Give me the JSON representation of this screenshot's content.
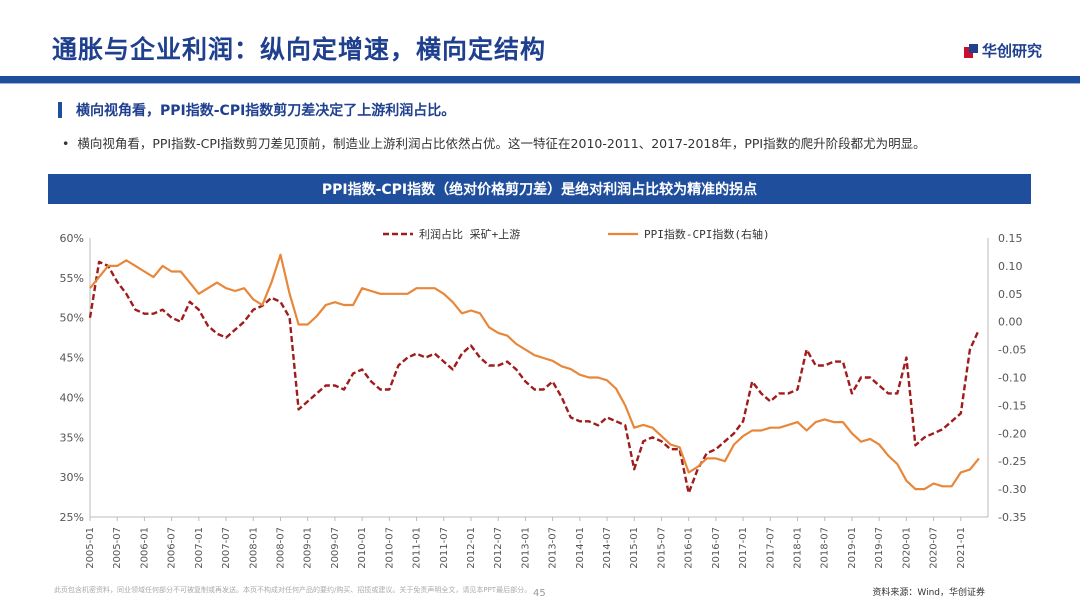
{
  "header": {
    "title": "通胀与企业利润：纵向定增速，横向定结构",
    "brand": "华创研究"
  },
  "headline": "横向视角看，PPI指数-CPI指数剪刀差决定了上游利润占比。",
  "bullet": "横向视角看，PPI指数-CPI指数剪刀差见顶前，制造业上游利润占比依然占优。这一特征在2010-2011、2017-2018年，PPI指数的爬升阶段都尤为明显。",
  "banner": "PPI指数-CPI指数（绝对价格剪刀差）是绝对利润占比较为精准的拐点",
  "footer": {
    "disclaimer": "此页包含机密资料，同业领域任何部分不可被复制或再发送。本页不构成对任何产品的要约/购买、招揽或建议。关于免责声明全文，请见本PPT最后部分。",
    "page": "45",
    "source": "资料来源：Wind，华创证券"
  },
  "colors": {
    "left_series": "#a01c1c",
    "right_series": "#e8873a",
    "axis": "#555555",
    "title_blue": "#1f3f8f",
    "banner_blue": "#1f4e9c"
  },
  "chart_data": {
    "type": "line",
    "grid": false,
    "legend_position": "top",
    "x_ticks": [
      "2005-01",
      "2005-07",
      "2006-01",
      "2006-07",
      "2007-01",
      "2007-07",
      "2008-01",
      "2008-07",
      "2009-01",
      "2009-07",
      "2010-01",
      "2010-07",
      "2011-01",
      "2011-07",
      "2012-01",
      "2012-07",
      "2013-01",
      "2013-07",
      "2014-01",
      "2014-07",
      "2015-01",
      "2015-07",
      "2016-01",
      "2016-07",
      "2017-01",
      "2017-07",
      "2018-01",
      "2018-07",
      "2019-01",
      "2019-07",
      "2020-01",
      "2020-07",
      "2021-01"
    ],
    "y_left": {
      "ticks": [
        "60%",
        "55%",
        "50%",
        "45%",
        "40%",
        "35%",
        "30%",
        "25%"
      ],
      "min": 25,
      "max": 60
    },
    "y_right": {
      "ticks": [
        "0.15",
        "0.10",
        "0.05",
        "0.00",
        "-0.05",
        "-0.10",
        "-0.15",
        "-0.20",
        "-0.25",
        "-0.30",
        "-0.35"
      ],
      "min": -0.35,
      "max": 0.15
    },
    "series": [
      {
        "name": "利润占比 采矿+上游",
        "axis": "left",
        "style": "dashed",
        "x": [
          "2005-01",
          "2005-03",
          "2005-05",
          "2005-07",
          "2005-09",
          "2005-11",
          "2006-01",
          "2006-03",
          "2006-05",
          "2006-07",
          "2006-09",
          "2006-11",
          "2007-01",
          "2007-03",
          "2007-05",
          "2007-07",
          "2007-09",
          "2007-11",
          "2008-01",
          "2008-03",
          "2008-05",
          "2008-07",
          "2008-09",
          "2008-11",
          "2009-01",
          "2009-03",
          "2009-05",
          "2009-07",
          "2009-09",
          "2009-11",
          "2010-01",
          "2010-03",
          "2010-05",
          "2010-07",
          "2010-09",
          "2010-11",
          "2011-01",
          "2011-03",
          "2011-05",
          "2011-07",
          "2011-09",
          "2011-11",
          "2012-01",
          "2012-03",
          "2012-05",
          "2012-07",
          "2012-09",
          "2012-11",
          "2013-01",
          "2013-03",
          "2013-05",
          "2013-07",
          "2013-09",
          "2013-11",
          "2014-01",
          "2014-03",
          "2014-05",
          "2014-07",
          "2014-09",
          "2014-11",
          "2015-01",
          "2015-03",
          "2015-05",
          "2015-07",
          "2015-09",
          "2015-11",
          "2016-01",
          "2016-03",
          "2016-05",
          "2016-07",
          "2016-09",
          "2016-11",
          "2017-01",
          "2017-03",
          "2017-05",
          "2017-07",
          "2017-09",
          "2017-11",
          "2018-01",
          "2018-03",
          "2018-05",
          "2018-07",
          "2018-09",
          "2018-11",
          "2019-01",
          "2019-03",
          "2019-05",
          "2019-07",
          "2019-09",
          "2019-11",
          "2020-01",
          "2020-03",
          "2020-05",
          "2020-07",
          "2020-09",
          "2020-11",
          "2021-01",
          "2021-03",
          "2021-05"
        ],
        "values": [
          50,
          57,
          56.5,
          54.5,
          53,
          51,
          50.5,
          50.5,
          51,
          50,
          49.5,
          52,
          51,
          49,
          48,
          47.5,
          48.5,
          49.5,
          51,
          51.5,
          52.5,
          52,
          50,
          38.5,
          39.5,
          40.5,
          41.5,
          41.5,
          41,
          43,
          43.5,
          42,
          41,
          41,
          44,
          45,
          45.5,
          45,
          45.5,
          44.5,
          43.5,
          45.5,
          46.5,
          45,
          44,
          44,
          44.5,
          43.5,
          42,
          41,
          41,
          42,
          40,
          37.5,
          37,
          37,
          36.5,
          37.5,
          37,
          36.5,
          31,
          34.5,
          35,
          34.5,
          33.5,
          33.5,
          28,
          31,
          33,
          33.5,
          34.5,
          35.5,
          37,
          42,
          40.5,
          39.5,
          40.5,
          40.5,
          41,
          46,
          44,
          44,
          44.5,
          44.5,
          40.5,
          42.5,
          42.5,
          41.5,
          40.5,
          40.5,
          45,
          34,
          35,
          35.5,
          36,
          37,
          38,
          46,
          48.5
        ]
      },
      {
        "name": "PPI指数-CPI指数(右轴)",
        "axis": "right",
        "style": "solid",
        "x": [
          "2005-01",
          "2005-03",
          "2005-05",
          "2005-07",
          "2005-09",
          "2005-11",
          "2006-01",
          "2006-03",
          "2006-05",
          "2006-07",
          "2006-09",
          "2006-11",
          "2007-01",
          "2007-03",
          "2007-05",
          "2007-07",
          "2007-09",
          "2007-11",
          "2008-01",
          "2008-03",
          "2008-05",
          "2008-07",
          "2008-09",
          "2008-11",
          "2009-01",
          "2009-03",
          "2009-05",
          "2009-07",
          "2009-09",
          "2009-11",
          "2010-01",
          "2010-03",
          "2010-05",
          "2010-07",
          "2010-09",
          "2010-11",
          "2011-01",
          "2011-03",
          "2011-05",
          "2011-07",
          "2011-09",
          "2011-11",
          "2012-01",
          "2012-03",
          "2012-05",
          "2012-07",
          "2012-09",
          "2012-11",
          "2013-01",
          "2013-03",
          "2013-05",
          "2013-07",
          "2013-09",
          "2013-11",
          "2014-01",
          "2014-03",
          "2014-05",
          "2014-07",
          "2014-09",
          "2014-11",
          "2015-01",
          "2015-03",
          "2015-05",
          "2015-07",
          "2015-09",
          "2015-11",
          "2016-01",
          "2016-03",
          "2016-05",
          "2016-07",
          "2016-09",
          "2016-11",
          "2017-01",
          "2017-03",
          "2017-05",
          "2017-07",
          "2017-09",
          "2017-11",
          "2018-01",
          "2018-03",
          "2018-05",
          "2018-07",
          "2018-09",
          "2018-11",
          "2019-01",
          "2019-03",
          "2019-05",
          "2019-07",
          "2019-09",
          "2019-11",
          "2020-01",
          "2020-03",
          "2020-05",
          "2020-07",
          "2020-09",
          "2020-11",
          "2021-01",
          "2021-03",
          "2021-05"
        ],
        "values": [
          0.06,
          0.08,
          0.1,
          0.1,
          0.11,
          0.1,
          0.09,
          0.08,
          0.1,
          0.09,
          0.09,
          0.07,
          0.05,
          0.06,
          0.07,
          0.06,
          0.055,
          0.06,
          0.04,
          0.03,
          0.07,
          0.12,
          0.05,
          -0.005,
          -0.005,
          0.01,
          0.03,
          0.035,
          0.03,
          0.03,
          0.06,
          0.055,
          0.05,
          0.05,
          0.05,
          0.05,
          0.06,
          0.06,
          0.06,
          0.05,
          0.035,
          0.015,
          0.02,
          0.015,
          -0.01,
          -0.02,
          -0.025,
          -0.04,
          -0.05,
          -0.06,
          -0.065,
          -0.07,
          -0.08,
          -0.085,
          -0.095,
          -0.1,
          -0.1,
          -0.105,
          -0.12,
          -0.15,
          -0.19,
          -0.185,
          -0.19,
          -0.205,
          -0.22,
          -0.225,
          -0.27,
          -0.26,
          -0.245,
          -0.245,
          -0.25,
          -0.22,
          -0.205,
          -0.195,
          -0.195,
          -0.19,
          -0.19,
          -0.185,
          -0.18,
          -0.195,
          -0.18,
          -0.175,
          -0.18,
          -0.18,
          -0.2,
          -0.215,
          -0.21,
          -0.22,
          -0.24,
          -0.255,
          -0.285,
          -0.3,
          -0.3,
          -0.29,
          -0.295,
          -0.295,
          -0.27,
          -0.265,
          -0.245
        ]
      }
    ]
  }
}
